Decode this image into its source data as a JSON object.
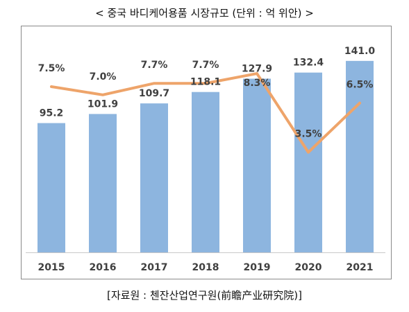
{
  "title": "< 중국 바디케어용품 시장규모 (단위 : 억 위안) >",
  "source": "[자료원 : 첸잔산업연구원(前瞻产业研究院)]",
  "colors": {
    "bar": "#8db5df",
    "line": "#eea46a",
    "text": "#404040",
    "axis": "#c8c8c8"
  },
  "chart_data": {
    "type": "bar",
    "categories": [
      "2015",
      "2016",
      "2017",
      "2018",
      "2019",
      "2020",
      "2021"
    ],
    "series": [
      {
        "type": "bar",
        "values": [
          95.2,
          101.9,
          109.7,
          118.1,
          127.9,
          132.4,
          141.0
        ],
        "labels": [
          "95.2",
          "101.9",
          "109.7",
          "118.1",
          "127.9",
          "132.4",
          "141.0"
        ]
      },
      {
        "type": "line",
        "values": [
          7.5,
          7.0,
          7.7,
          7.7,
          8.3,
          3.5,
          6.5
        ],
        "labels": [
          "7.5%",
          "7.0%",
          "7.7%",
          "7.7%",
          "8.3%",
          "3.5%",
          "6.5%"
        ]
      }
    ],
    "ylim": [
      0,
      145
    ],
    "ylim_secondary": [
      -2.6,
      9.4
    ],
    "grid": false,
    "legend": "none"
  }
}
